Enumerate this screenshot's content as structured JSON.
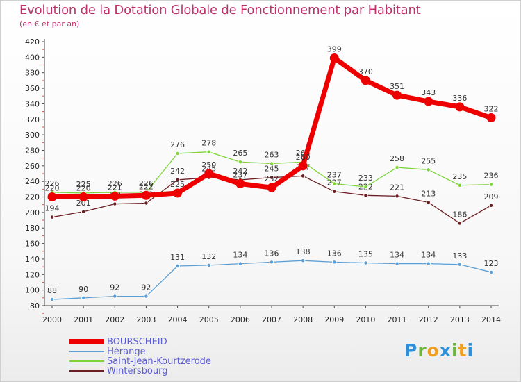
{
  "header": {
    "title": "Evolution de la Dotation Globale de Fonctionnement par Habitant",
    "subtitle": "(en € et par an)"
  },
  "logo": {
    "letters": [
      "P",
      "r",
      "o",
      "x",
      "i",
      "t",
      "i"
    ],
    "colors": [
      "#2f8fd8",
      "#6fb43f",
      "#f0a020",
      "#2f8fd8",
      "#6fb43f",
      "#f0a020",
      "#2f8fd8"
    ]
  },
  "chart_data": {
    "type": "line",
    "title": "Evolution de la Dotation Globale de Fonctionnement par Habitant",
    "subtitle": "(en € et par an)",
    "xlabel": "",
    "ylabel": "",
    "x": [
      "2000",
      "2001",
      "2002",
      "2003",
      "2004",
      "2005",
      "2006",
      "2007",
      "2008",
      "2009",
      "2010",
      "2011",
      "2012",
      "2013",
      "2014"
    ],
    "ylim": [
      80,
      420
    ],
    "yticks": [
      80,
      100,
      120,
      140,
      160,
      180,
      200,
      220,
      240,
      260,
      280,
      300,
      320,
      340,
      360,
      380,
      400,
      420
    ],
    "grid": false,
    "legend_position": "bottom-left",
    "series": [
      {
        "name": "Wintersbourg",
        "color": "#6b1e22",
        "width": 1.3,
        "dot": 5.5,
        "values": [
          194,
          201,
          211,
          212,
          242,
          245,
          242,
          245,
          247,
          227,
          222,
          221,
          213,
          186,
          209
        ],
        "labels": [
          "194",
          "201",
          "211",
          "212",
          "242",
          "245",
          "242",
          "245",
          "247",
          "227",
          "222",
          "221",
          "213",
          "186",
          "209"
        ]
      },
      {
        "name": "Saint-Jean-Kourtzerode",
        "color": "#7fd43a",
        "width": 1.3,
        "dot": 5.5,
        "values": [
          226,
          225,
          226,
          226,
          276,
          278,
          265,
          263,
          265,
          237,
          233,
          258,
          255,
          235,
          236
        ],
        "labels": [
          "226",
          "225",
          "226",
          "226",
          "276",
          "278",
          "265",
          "263",
          "265",
          "237",
          "233",
          "258",
          "255",
          "235",
          "236"
        ]
      },
      {
        "name": "Hérange",
        "color": "#5b9fd6",
        "width": 1.3,
        "dot": 5.5,
        "values": [
          88,
          90,
          92,
          92,
          131,
          132,
          134,
          136,
          138,
          136,
          135,
          134,
          134,
          133,
          123
        ],
        "labels": [
          "88",
          "90",
          "92",
          "92",
          "131",
          "132",
          "134",
          "136",
          "138",
          "136",
          "135",
          "134",
          "134",
          "133",
          "123"
        ]
      },
      {
        "name": "BOURSCHEID",
        "color": "#ee0000",
        "width": 7,
        "dot": 12,
        "values": [
          220,
          220,
          221,
          222,
          225,
          250,
          237,
          232,
          260,
          399,
          370,
          351,
          343,
          336,
          322
        ],
        "labels": [
          "220",
          "220",
          "221",
          "222",
          "225",
          "250",
          "237",
          "232",
          "260",
          "399",
          "370",
          "351",
          "343",
          "336",
          "322"
        ]
      }
    ]
  },
  "legend": {
    "items": [
      {
        "label": "BOURSCHEID",
        "color": "#ee0000",
        "thickness": 8
      },
      {
        "label": "Hérange",
        "color": "#5b9fd6",
        "thickness": 2
      },
      {
        "label": "Saint-Jean-Kourtzerode",
        "color": "#7fd43a",
        "thickness": 2
      },
      {
        "label": "Wintersbourg",
        "color": "#6b1e22",
        "thickness": 2
      }
    ]
  }
}
